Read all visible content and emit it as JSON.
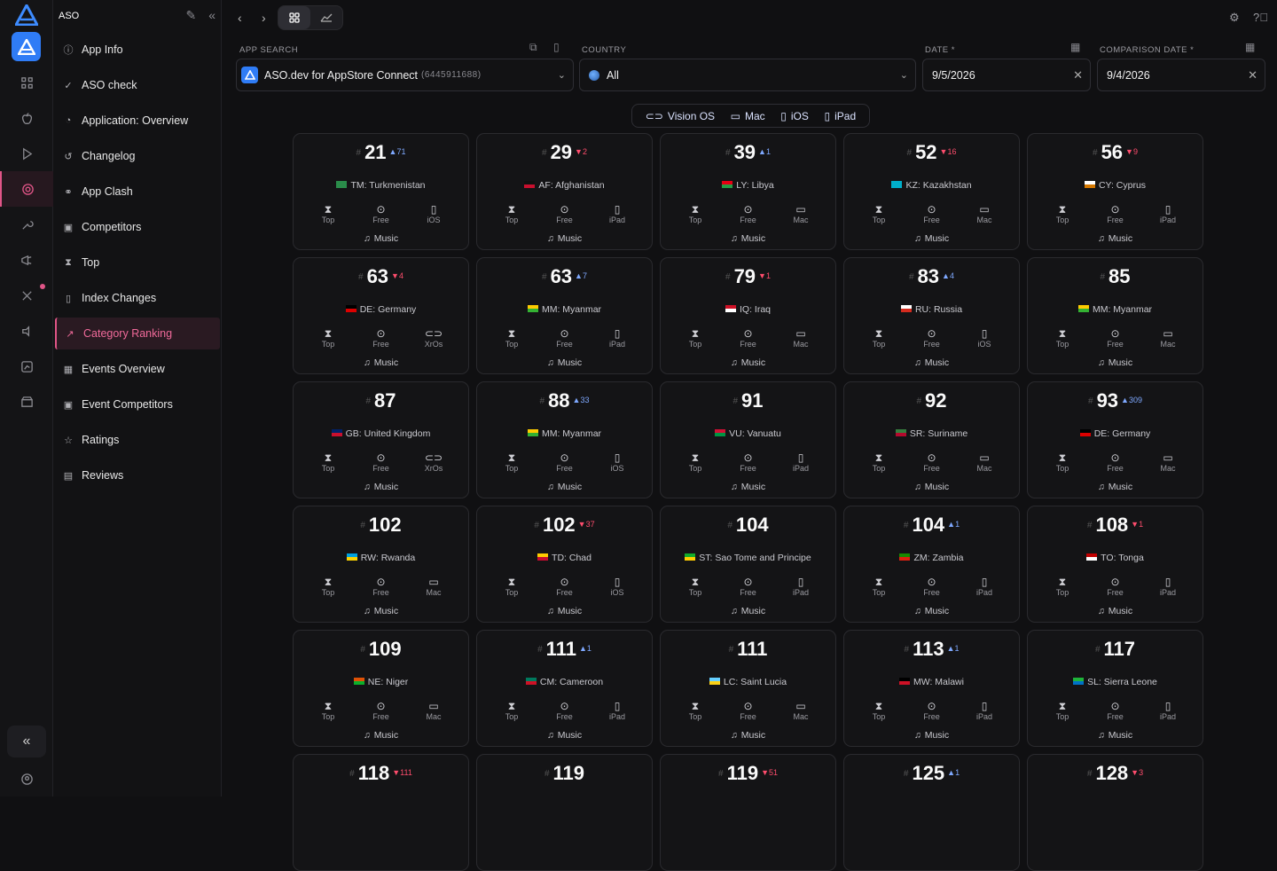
{
  "rail": {
    "items": [
      "grid-icon",
      "apple-icon",
      "play-store-icon",
      "target-icon",
      "wrench-icon",
      "megaphone-icon",
      "tools-icon",
      "broadcast-icon",
      "analytics-icon",
      "store-icon"
    ],
    "active_index": 3
  },
  "sidebar": {
    "title": "ASO",
    "items": [
      {
        "label": "App Info",
        "icon": "info-icon"
      },
      {
        "label": "ASO check",
        "icon": "check-circle-icon"
      },
      {
        "label": "Application: Overview",
        "icon": "overview-icon"
      },
      {
        "label": "Changelog",
        "icon": "history-icon"
      },
      {
        "label": "App Clash",
        "icon": "clash-icon"
      },
      {
        "label": "Competitors",
        "icon": "competitors-icon"
      },
      {
        "label": "Top",
        "icon": "hourglass-icon"
      },
      {
        "label": "Index Changes",
        "icon": "phone-icon"
      },
      {
        "label": "Category Ranking",
        "icon": "trend-icon",
        "active": true
      },
      {
        "label": "Events Overview",
        "icon": "calendar-icon"
      },
      {
        "label": "Event Competitors",
        "icon": "event-icon"
      },
      {
        "label": "Ratings",
        "icon": "star-icon"
      },
      {
        "label": "Reviews",
        "icon": "reviews-icon"
      }
    ]
  },
  "filters": {
    "app_search_label": "APP SEARCH",
    "app_name": "ASO.dev for AppStore Connect",
    "app_id": "(6445911688)",
    "country_label": "COUNTRY",
    "country_value": "All",
    "date_label": "DATE *",
    "date_value": "9/5/2026",
    "comparison_label": "COMPARISON DATE *",
    "comparison_value": "9/4/2026"
  },
  "platforms": [
    "Vision OS",
    "Mac",
    "iOS",
    "iPad"
  ],
  "card_labels": {
    "top": "Top",
    "free": "Free",
    "category": "Music"
  },
  "colors": {
    "accent": "#e05587",
    "up": "#7fa9ff",
    "down": "#ff4d6d",
    "app_blue": "#2f7cf6"
  },
  "cards": [
    {
      "rank": "21",
      "dir": "up",
      "change": "71",
      "country": "TM: Turkmenistan",
      "device": "iOS",
      "flag": [
        "#2a8c4a",
        "#2a8c4a"
      ]
    },
    {
      "rank": "29",
      "dir": "down",
      "change": "2",
      "country": "AF: Afghanistan",
      "device": "iPad",
      "flag": [
        "#111",
        "#c8102e"
      ]
    },
    {
      "rank": "39",
      "dir": "up",
      "change": "1",
      "country": "LY: Libya",
      "device": "Mac",
      "flag": [
        "#e70013",
        "#239e46"
      ]
    },
    {
      "rank": "52",
      "dir": "down",
      "change": "16",
      "country": "KZ: Kazakhstan",
      "device": "Mac",
      "flag": [
        "#00afca",
        "#00afca"
      ]
    },
    {
      "rank": "56",
      "dir": "down",
      "change": "9",
      "country": "CY: Cyprus",
      "device": "iPad",
      "flag": [
        "#ffffff",
        "#d57800"
      ]
    },
    {
      "rank": "63",
      "dir": "down",
      "change": "4",
      "country": "DE: Germany",
      "device": "XrOs",
      "flag": [
        "#000",
        "#dd0000"
      ]
    },
    {
      "rank": "63",
      "dir": "up",
      "change": "7",
      "country": "MM: Myanmar",
      "device": "iPad",
      "flag": [
        "#fecb00",
        "#34b233"
      ]
    },
    {
      "rank": "79",
      "dir": "down",
      "change": "1",
      "country": "IQ: Iraq",
      "device": "Mac",
      "flag": [
        "#ce1126",
        "#ffffff"
      ]
    },
    {
      "rank": "83",
      "dir": "up",
      "change": "4",
      "country": "RU: Russia",
      "device": "iOS",
      "flag": [
        "#ffffff",
        "#d52b1e"
      ]
    },
    {
      "rank": "85",
      "dir": "",
      "change": "",
      "country": "MM: Myanmar",
      "device": "Mac",
      "flag": [
        "#fecb00",
        "#34b233"
      ]
    },
    {
      "rank": "87",
      "dir": "",
      "change": "",
      "country": "GB: United Kingdom",
      "device": "XrOs",
      "flag": [
        "#012169",
        "#c8102e"
      ]
    },
    {
      "rank": "88",
      "dir": "up",
      "change": "33",
      "country": "MM: Myanmar",
      "device": "iOS",
      "flag": [
        "#fecb00",
        "#34b233"
      ]
    },
    {
      "rank": "91",
      "dir": "",
      "change": "",
      "country": "VU: Vanuatu",
      "device": "iPad",
      "flag": [
        "#d21034",
        "#009543"
      ]
    },
    {
      "rank": "92",
      "dir": "",
      "change": "",
      "country": "SR: Suriname",
      "device": "Mac",
      "flag": [
        "#377e3f",
        "#b40a2d"
      ]
    },
    {
      "rank": "93",
      "dir": "up",
      "change": "309",
      "country": "DE: Germany",
      "device": "Mac",
      "flag": [
        "#000",
        "#dd0000"
      ]
    },
    {
      "rank": "102",
      "dir": "",
      "change": "",
      "country": "RW: Rwanda",
      "device": "Mac",
      "flag": [
        "#00a1de",
        "#fad201"
      ]
    },
    {
      "rank": "102",
      "dir": "down",
      "change": "37",
      "country": "TD: Chad",
      "device": "iOS",
      "flag": [
        "#fecb00",
        "#c60c30"
      ]
    },
    {
      "rank": "104",
      "dir": "",
      "change": "",
      "country": "ST: Sao Tome and Principe",
      "device": "iPad",
      "flag": [
        "#12ad2b",
        "#ffce00"
      ]
    },
    {
      "rank": "104",
      "dir": "up",
      "change": "1",
      "country": "ZM: Zambia",
      "device": "iPad",
      "flag": [
        "#198a00",
        "#de2010"
      ]
    },
    {
      "rank": "108",
      "dir": "down",
      "change": "1",
      "country": "TO: Tonga",
      "device": "iPad",
      "flag": [
        "#c10000",
        "#ffffff"
      ]
    },
    {
      "rank": "109",
      "dir": "",
      "change": "",
      "country": "NE: Niger",
      "device": "Mac",
      "flag": [
        "#e05206",
        "#0db02b"
      ]
    },
    {
      "rank": "111",
      "dir": "up",
      "change": "1",
      "country": "CM: Cameroon",
      "device": "iPad",
      "flag": [
        "#007a5e",
        "#ce1126"
      ]
    },
    {
      "rank": "111",
      "dir": "",
      "change": "",
      "country": "LC: Saint Lucia",
      "device": "Mac",
      "flag": [
        "#65cfff",
        "#fcd116"
      ]
    },
    {
      "rank": "113",
      "dir": "up",
      "change": "1",
      "country": "MW: Malawi",
      "device": "iPad",
      "flag": [
        "#000",
        "#ce1126"
      ]
    },
    {
      "rank": "117",
      "dir": "",
      "change": "",
      "country": "SL: Sierra Leone",
      "device": "iPad",
      "flag": [
        "#1eb53a",
        "#0072c6"
      ]
    },
    {
      "rank": "118",
      "dir": "down",
      "change": "111",
      "country": "",
      "device": "",
      "flag": [
        "#000",
        "#000"
      ]
    },
    {
      "rank": "119",
      "dir": "",
      "change": "",
      "country": "",
      "device": "",
      "flag": [
        "#000",
        "#000"
      ]
    },
    {
      "rank": "119",
      "dir": "down",
      "change": "51",
      "country": "",
      "device": "",
      "flag": [
        "#000",
        "#000"
      ]
    },
    {
      "rank": "125",
      "dir": "up",
      "change": "1",
      "country": "",
      "device": "",
      "flag": [
        "#000",
        "#000"
      ]
    },
    {
      "rank": "128",
      "dir": "down",
      "change": "3",
      "country": "",
      "device": "",
      "flag": [
        "#000",
        "#000"
      ]
    }
  ]
}
